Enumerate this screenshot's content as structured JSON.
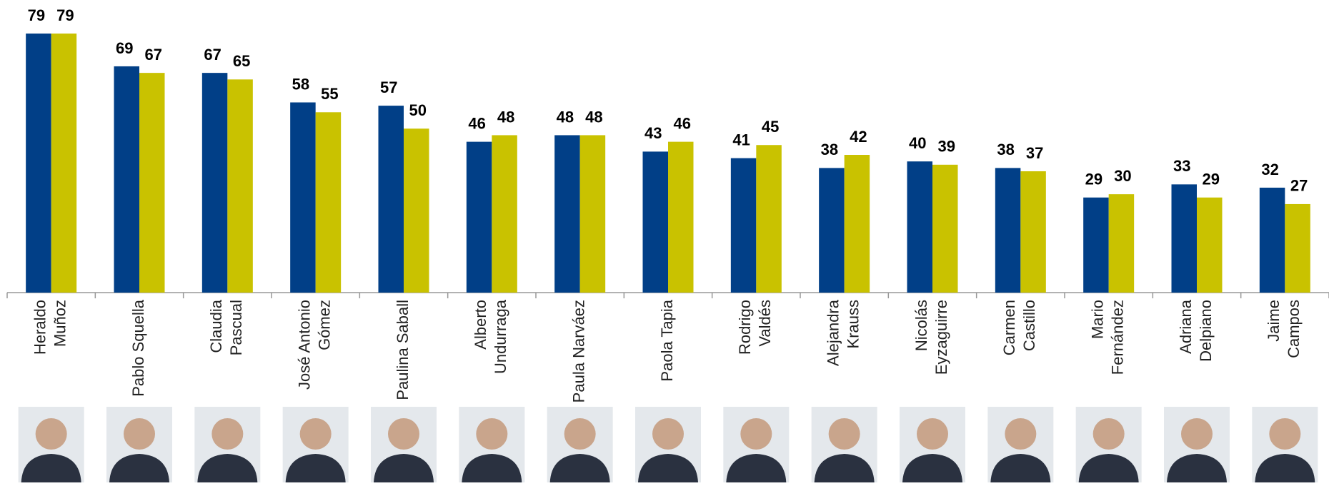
{
  "chart_data": {
    "type": "bar",
    "categories": [
      [
        "Heraldo",
        "Muñoz"
      ],
      [
        "Pablo Squella"
      ],
      [
        "Claudia",
        "Pascual"
      ],
      [
        "José Antonio",
        "Gómez"
      ],
      [
        "Paulina Saball"
      ],
      [
        "Alberto",
        "Undurraga"
      ],
      [
        "Paula Narváez"
      ],
      [
        "Paola Tapia"
      ],
      [
        "Rodrigo",
        "Valdés"
      ],
      [
        "Alejandra",
        "Krauss"
      ],
      [
        "Nicolás",
        "Eyzaguirre"
      ],
      [
        "Carmen",
        "Castillo"
      ],
      [
        "Mario",
        "Fernández"
      ],
      [
        "Adriana",
        "Delpiano"
      ],
      [
        "Jaime",
        "Campos"
      ]
    ],
    "series": [
      {
        "color": "#013f87",
        "values": [
          79,
          69,
          67,
          58,
          57,
          46,
          48,
          43,
          41,
          38,
          40,
          38,
          29,
          33,
          32
        ]
      },
      {
        "color": "#c9c200",
        "values": [
          79,
          67,
          65,
          55,
          50,
          48,
          48,
          46,
          45,
          42,
          39,
          37,
          30,
          29,
          27
        ]
      }
    ]
  }
}
